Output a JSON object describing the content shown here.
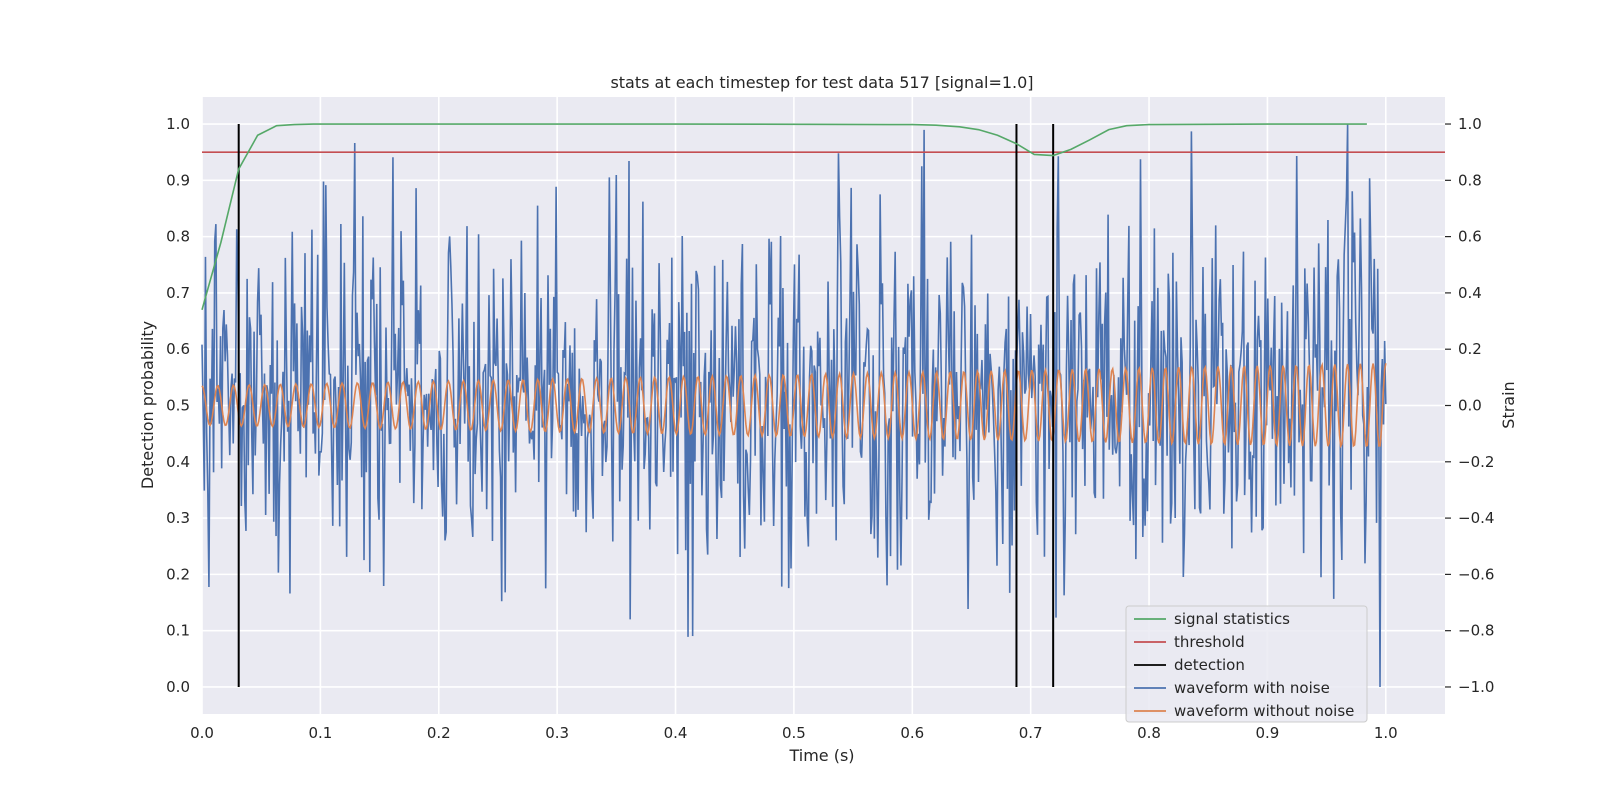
{
  "chart_data": {
    "type": "line",
    "title": "stats at each timestep for test data 517 [signal=1.0]",
    "xlabel": "Time (s)",
    "ylabel_left": "Detection probability",
    "ylabel_right": "Strain",
    "xlim": [
      0.0,
      1.05
    ],
    "ylim_left": [
      -0.048,
      1.048
    ],
    "ylim_right": [
      -1.096,
      1.096
    ],
    "x_ticks": [
      "0.0",
      "0.1",
      "0.2",
      "0.3",
      "0.4",
      "0.5",
      "0.6",
      "0.7",
      "0.8",
      "0.9",
      "1.0"
    ],
    "y_left_ticks": [
      "0.0",
      "0.1",
      "0.2",
      "0.3",
      "0.4",
      "0.5",
      "0.6",
      "0.7",
      "0.8",
      "0.9",
      "1.0"
    ],
    "y_right_ticks": [
      "−1.0",
      "−0.8",
      "−0.6",
      "−0.4",
      "−0.2",
      "0.0",
      "0.2",
      "0.4",
      "0.6",
      "0.8",
      "1.0"
    ],
    "grid": true,
    "legend_placement": "lower-right",
    "background_color": "#eaeaf2",
    "series": [
      {
        "name": "signal statistics",
        "color": "#55a868",
        "axis": "left",
        "x": [
          0.0,
          0.016,
          0.031,
          0.047,
          0.063,
          0.078,
          0.094,
          0.2,
          0.4,
          0.6,
          0.62,
          0.64,
          0.656,
          0.672,
          0.688,
          0.703,
          0.719,
          0.734,
          0.75,
          0.766,
          0.781,
          0.8,
          0.9,
          0.984
        ],
        "values": [
          0.67,
          0.79,
          0.92,
          0.98,
          0.997,
          0.999,
          1.0,
          1.0,
          1.0,
          0.999,
          0.998,
          0.995,
          0.99,
          0.98,
          0.965,
          0.946,
          0.944,
          0.955,
          0.972,
          0.99,
          0.997,
          0.999,
          1.0,
          1.0
        ]
      },
      {
        "name": "threshold",
        "color": "#c44e52",
        "axis": "left",
        "x": [
          0.0,
          1.05
        ],
        "values": [
          0.95,
          0.95
        ]
      },
      {
        "name": "detection",
        "color": "#000000",
        "axis": "left",
        "x_positions": [
          0.031,
          0.688,
          0.719
        ],
        "range": [
          0.0,
          1.0
        ]
      },
      {
        "name": "waveform with noise",
        "color": "#4c72b0",
        "axis": "right",
        "sample_count": 1024,
        "range": [
          -1.0,
          1.0
        ]
      },
      {
        "name": "waveform without noise",
        "color": "#dd8452",
        "axis": "right",
        "sample_count": 1024,
        "amplitude_start": 0.07,
        "amplitude_end": 0.15,
        "cycles": 75
      }
    ]
  }
}
